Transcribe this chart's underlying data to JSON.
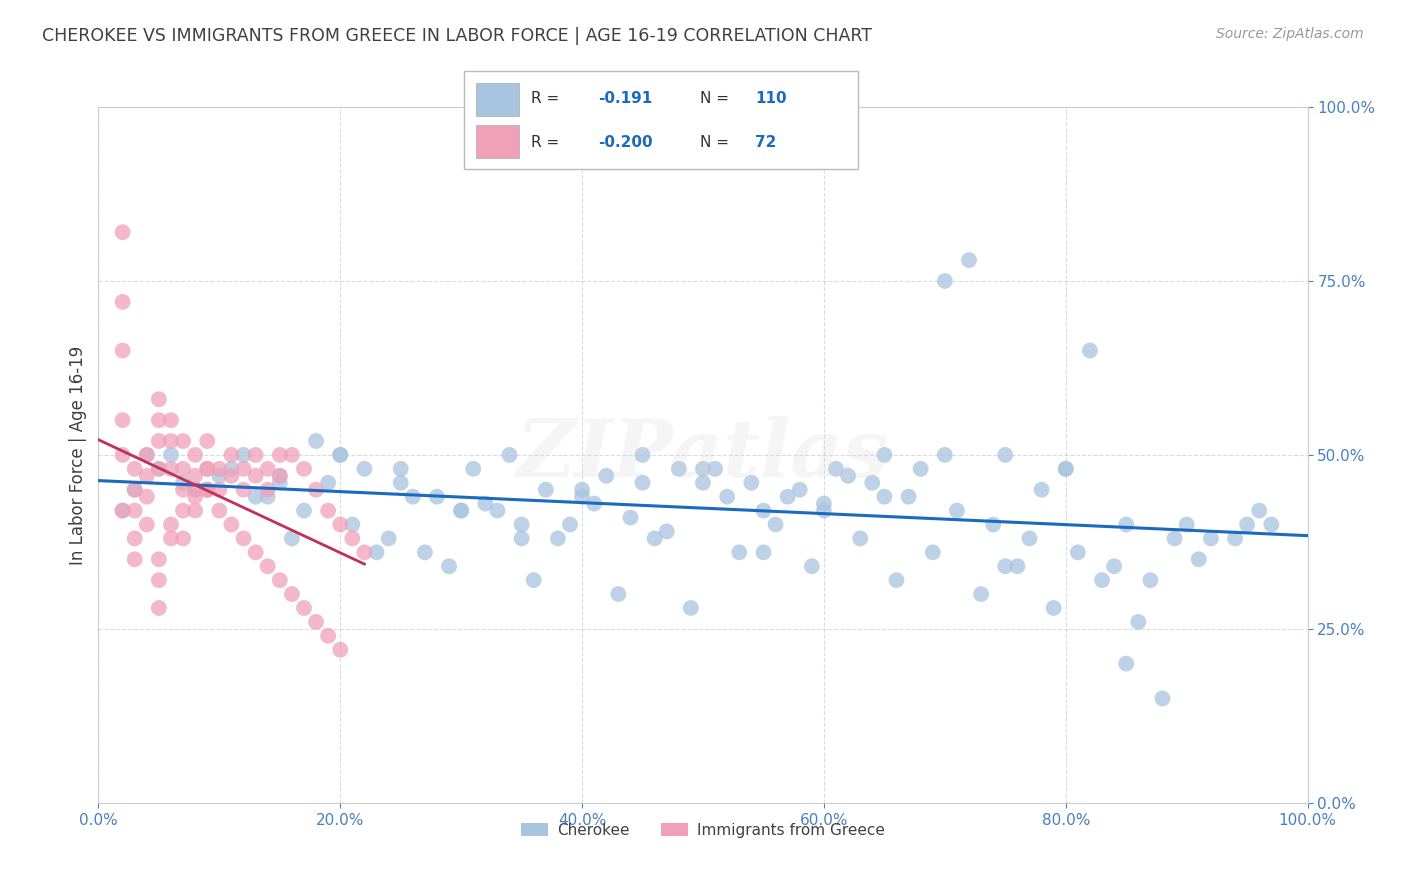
{
  "title": "CHEROKEE VS IMMIGRANTS FROM GREECE IN LABOR FORCE | AGE 16-19 CORRELATION CHART",
  "source": "Source: ZipAtlas.com",
  "ylabel": "In Labor Force | Age 16-19",
  "x_tick_labels": [
    "0.0%",
    "20.0%",
    "40.0%",
    "60.0%",
    "80.0%",
    "100.0%"
  ],
  "x_tick_values": [
    0,
    20,
    40,
    60,
    80,
    100
  ],
  "y_tick_labels": [
    "0.0%",
    "25.0%",
    "50.0%",
    "75.0%",
    "100.0%"
  ],
  "y_tick_values": [
    0,
    25,
    50,
    75,
    100
  ],
  "xlim": [
    0,
    100
  ],
  "ylim": [
    0,
    100
  ],
  "legend_labels": [
    "Cherokee",
    "Immigrants from Greece"
  ],
  "blue_color": "#a8c4e0",
  "pink_color": "#f0a0b8",
  "blue_line_color": "#1a6bbf",
  "pink_line_color": "#c0305a",
  "background_color": "#ffffff",
  "grid_color": "#cccccc",
  "title_color": "#404040",
  "axis_label_color": "#404040",
  "tick_color": "#4a80c0",
  "blue_scatter_x": [
    5,
    8,
    12,
    15,
    18,
    20,
    22,
    25,
    28,
    30,
    32,
    35,
    38,
    40,
    42,
    45,
    48,
    50,
    52,
    55,
    58,
    60,
    62,
    65,
    68,
    70,
    72,
    75,
    78,
    80,
    82,
    85,
    88,
    90,
    3,
    6,
    10,
    14,
    17,
    21,
    24,
    27,
    31,
    34,
    37,
    41,
    44,
    47,
    51,
    54,
    57,
    61,
    64,
    67,
    71,
    74,
    77,
    81,
    84,
    87,
    91,
    94,
    2,
    9,
    16,
    23,
    29,
    36,
    43,
    49,
    56,
    63,
    69,
    76,
    83,
    89,
    96,
    4,
    11,
    19,
    26,
    33,
    39,
    46,
    53,
    59,
    66,
    73,
    79,
    86,
    92,
    95,
    7,
    13,
    30,
    50,
    70,
    15,
    40,
    60,
    80,
    20,
    45,
    65,
    85,
    35,
    55,
    75,
    97,
    25
  ],
  "blue_scatter_y": [
    48,
    45,
    50,
    47,
    52,
    50,
    48,
    46,
    44,
    42,
    43,
    40,
    38,
    45,
    47,
    50,
    48,
    46,
    44,
    42,
    45,
    43,
    47,
    50,
    48,
    75,
    78,
    50,
    45,
    48,
    65,
    20,
    15,
    40,
    45,
    50,
    47,
    44,
    42,
    40,
    38,
    36,
    48,
    50,
    45,
    43,
    41,
    39,
    48,
    46,
    44,
    48,
    46,
    44,
    42,
    40,
    38,
    36,
    34,
    32,
    35,
    38,
    42,
    45,
    38,
    36,
    34,
    32,
    30,
    28,
    40,
    38,
    36,
    34,
    32,
    38,
    42,
    50,
    48,
    46,
    44,
    42,
    40,
    38,
    36,
    34,
    32,
    30,
    28,
    26,
    38,
    40,
    46,
    44,
    42,
    48,
    50,
    46,
    44,
    42,
    48,
    50,
    46,
    44,
    40,
    38,
    36,
    34,
    40,
    48
  ],
  "pink_scatter_x": [
    2,
    2,
    2,
    2,
    2,
    2,
    3,
    3,
    3,
    3,
    3,
    4,
    4,
    4,
    4,
    5,
    5,
    5,
    5,
    6,
    6,
    6,
    7,
    7,
    7,
    8,
    8,
    8,
    9,
    9,
    9,
    10,
    10,
    11,
    11,
    12,
    12,
    13,
    13,
    14,
    14,
    15,
    15,
    16,
    17,
    18,
    19,
    20,
    21,
    22,
    5,
    5,
    5,
    6,
    6,
    7,
    7,
    8,
    8,
    9,
    9,
    10,
    11,
    12,
    13,
    14,
    15,
    16,
    17,
    18,
    19,
    20
  ],
  "pink_scatter_y": [
    82,
    72,
    65,
    55,
    50,
    42,
    48,
    45,
    42,
    38,
    35,
    50,
    47,
    44,
    40,
    58,
    55,
    52,
    48,
    55,
    52,
    48,
    52,
    48,
    45,
    50,
    47,
    44,
    52,
    48,
    45,
    48,
    45,
    50,
    47,
    48,
    45,
    50,
    47,
    48,
    45,
    50,
    47,
    50,
    48,
    45,
    42,
    40,
    38,
    36,
    35,
    32,
    28,
    40,
    38,
    42,
    38,
    45,
    42,
    48,
    45,
    42,
    40,
    38,
    36,
    34,
    32,
    30,
    28,
    26,
    24,
    22
  ],
  "legend_r_blue": "-0.191",
  "legend_n_blue": "110",
  "legend_r_pink": "-0.200",
  "legend_n_pink": "72"
}
